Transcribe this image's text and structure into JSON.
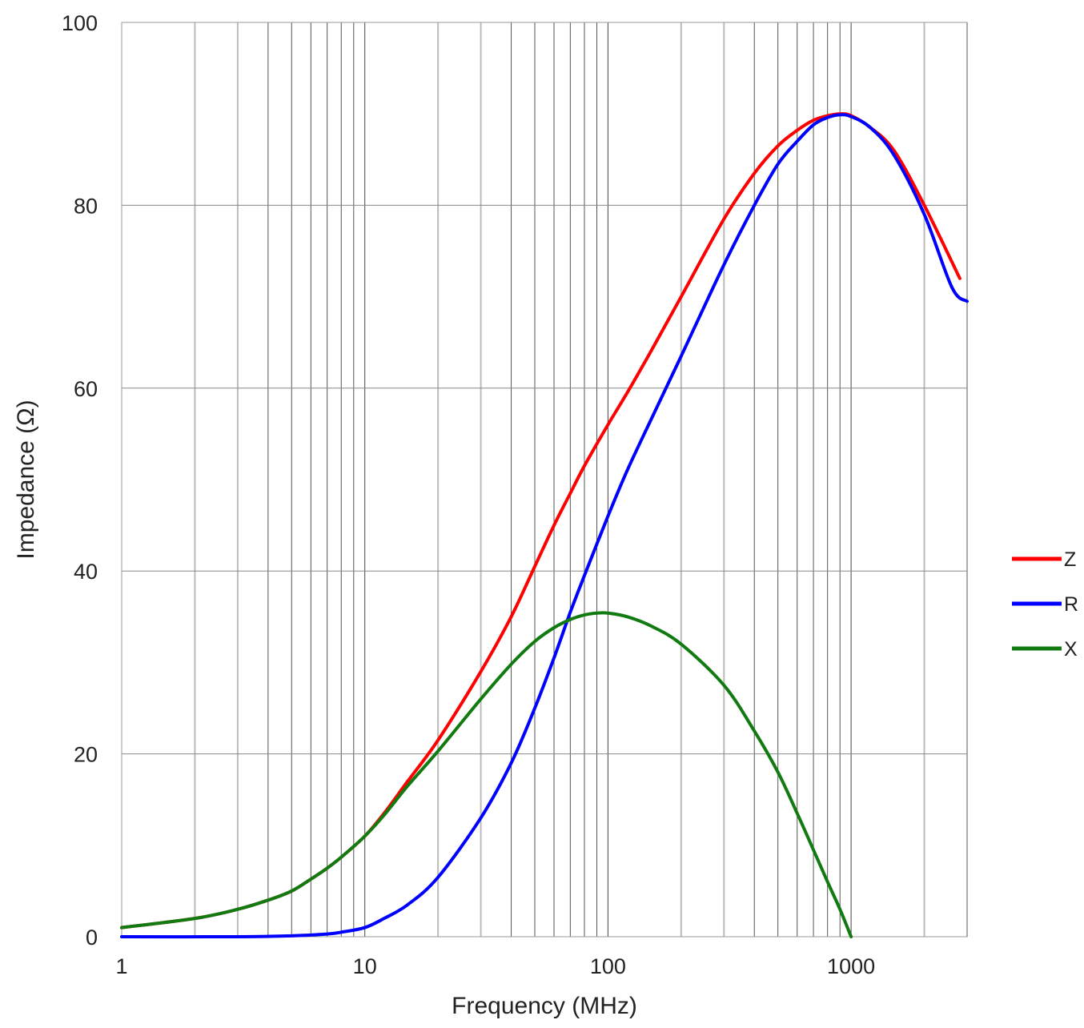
{
  "chart_data": {
    "type": "line",
    "title": "",
    "xlabel": "Frequency (MHz)",
    "ylabel": "Impedance (Ω)",
    "x_scale": "log",
    "xlim": [
      1,
      3000
    ],
    "ylim": [
      0,
      100
    ],
    "x_ticks": [
      1,
      10,
      100,
      1000
    ],
    "x_tick_labels": [
      "1",
      "10",
      "100",
      "1000"
    ],
    "y_ticks": [
      0,
      20,
      40,
      60,
      80,
      100
    ],
    "y_tick_labels": [
      "0",
      "20",
      "40",
      "60",
      "80",
      "100"
    ],
    "grid": true,
    "legend_position": "right",
    "series": [
      {
        "name": "Z",
        "color": "#ff0000",
        "x": [
          1,
          2,
          3,
          4,
          5,
          6,
          7,
          8,
          10,
          12,
          15,
          20,
          30,
          40,
          50,
          60,
          70,
          80,
          100,
          120,
          150,
          200,
          300,
          400,
          500,
          600,
          700,
          800,
          900,
          1000,
          1200,
          1500,
          2000,
          2800
        ],
        "y": [
          1,
          2,
          3,
          4,
          5,
          6.3,
          7.5,
          8.7,
          11,
          13.5,
          17,
          21.5,
          29,
          35,
          40.5,
          45,
          48.5,
          51.5,
          56,
          59.5,
          64,
          70,
          78.5,
          83.5,
          86.5,
          88.2,
          89.3,
          89.8,
          90,
          89.8,
          88.5,
          86,
          80,
          72
        ]
      },
      {
        "name": "R",
        "color": "#0000ff",
        "x": [
          1,
          3,
          5,
          7,
          8,
          10,
          12,
          15,
          20,
          30,
          40,
          50,
          60,
          70,
          80,
          100,
          120,
          150,
          200,
          300,
          400,
          500,
          600,
          700,
          800,
          900,
          1000,
          1200,
          1500,
          2000,
          2600,
          3000
        ],
        "y": [
          0,
          0,
          0.1,
          0.3,
          0.5,
          1,
          2,
          3.5,
          6.5,
          13,
          19,
          25,
          30.5,
          35.5,
          39.5,
          46,
          51,
          56.5,
          63.5,
          73.5,
          80,
          84.5,
          87,
          88.8,
          89.6,
          89.9,
          89.7,
          88.5,
          85.5,
          79,
          71,
          69.5
        ]
      },
      {
        "name": "X",
        "color": "#117a11",
        "x": [
          1,
          2,
          3,
          4,
          5,
          6,
          7,
          8,
          10,
          12,
          15,
          20,
          30,
          40,
          50,
          60,
          70,
          80,
          90,
          100,
          120,
          150,
          200,
          300,
          400,
          500,
          600,
          700,
          800,
          900,
          1000
        ],
        "y": [
          1,
          2,
          3,
          4,
          5,
          6.3,
          7.5,
          8.7,
          11,
          13.3,
          16.5,
          20.3,
          26,
          29.8,
          32.3,
          33.8,
          34.7,
          35.2,
          35.4,
          35.4,
          35,
          34,
          32,
          27.5,
          22.5,
          18,
          13.5,
          9.5,
          6,
          3,
          0
        ]
      }
    ]
  }
}
